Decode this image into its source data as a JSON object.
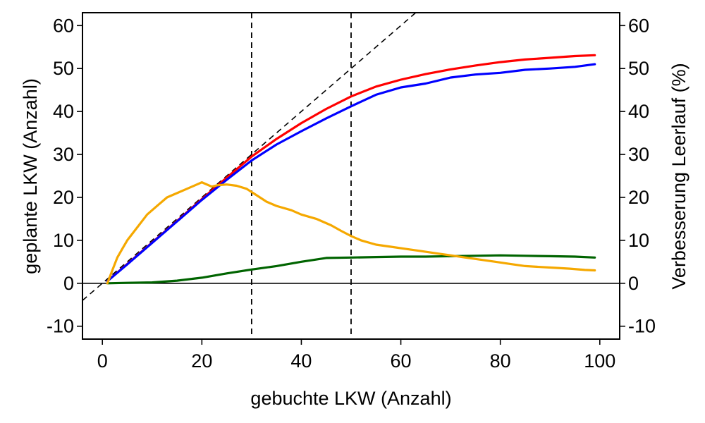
{
  "chart_data": {
    "type": "line",
    "title": "",
    "xlabel": "gebuchte LKW (Anzahl)",
    "ylabel": "geplante LKW (Anzahl)",
    "ylabel_right": "Verbesserung Leerlauf (%)",
    "xlim": [
      -4,
      104
    ],
    "ylim": [
      -13,
      63
    ],
    "ylim_right": [
      -13,
      63
    ],
    "x_ticks": [
      0,
      20,
      40,
      60,
      80,
      100
    ],
    "y_ticks": [
      -10,
      0,
      10,
      20,
      30,
      40,
      50,
      60
    ],
    "y_ticks_right": [
      -10,
      0,
      10,
      20,
      30,
      40,
      50,
      60
    ],
    "grid": false,
    "legend": "none",
    "reference_lines": {
      "identity_diagonal": true,
      "horizontal_zero": 0,
      "vertical_dashed": [
        30,
        50
      ]
    },
    "series": [
      {
        "axis": "left",
        "color": "#ff0000",
        "points": [
          [
            1,
            0.5
          ],
          [
            5,
            4.5
          ],
          [
            10,
            9.5
          ],
          [
            15,
            14.5
          ],
          [
            20,
            19.6
          ],
          [
            25,
            24.6
          ],
          [
            30,
            29.5
          ],
          [
            35,
            33.6
          ],
          [
            40,
            37.3
          ],
          [
            45,
            40.6
          ],
          [
            50,
            43.5
          ],
          [
            55,
            45.8
          ],
          [
            60,
            47.4
          ],
          [
            65,
            48.7
          ],
          [
            70,
            49.8
          ],
          [
            75,
            50.7
          ],
          [
            80,
            51.5
          ],
          [
            85,
            52.1
          ],
          [
            90,
            52.5
          ],
          [
            95,
            52.9
          ],
          [
            99,
            53.1
          ]
        ]
      },
      {
        "axis": "left",
        "color": "#0000ff",
        "points": [
          [
            1,
            0.5
          ],
          [
            5,
            4.4
          ],
          [
            10,
            9.4
          ],
          [
            15,
            14.4
          ],
          [
            20,
            19.4
          ],
          [
            25,
            24.1
          ],
          [
            30,
            28.6
          ],
          [
            35,
            32.3
          ],
          [
            40,
            35.4
          ],
          [
            45,
            38.4
          ],
          [
            50,
            41.2
          ],
          [
            55,
            43.9
          ],
          [
            60,
            45.6
          ],
          [
            65,
            46.5
          ],
          [
            70,
            47.9
          ],
          [
            75,
            48.6
          ],
          [
            80,
            49.0
          ],
          [
            85,
            49.7
          ],
          [
            90,
            50.0
          ],
          [
            95,
            50.4
          ],
          [
            99,
            51.0
          ]
        ]
      },
      {
        "axis": "right",
        "color": "#006400",
        "points": [
          [
            1,
            0.0
          ],
          [
            5,
            0.1
          ],
          [
            10,
            0.2
          ],
          [
            15,
            0.6
          ],
          [
            20,
            1.3
          ],
          [
            25,
            2.3
          ],
          [
            30,
            3.2
          ],
          [
            35,
            4.0
          ],
          [
            40,
            5.0
          ],
          [
            45,
            5.9
          ],
          [
            50,
            6.0
          ],
          [
            55,
            6.1
          ],
          [
            60,
            6.2
          ],
          [
            65,
            6.2
          ],
          [
            70,
            6.3
          ],
          [
            75,
            6.4
          ],
          [
            80,
            6.5
          ],
          [
            85,
            6.4
          ],
          [
            90,
            6.3
          ],
          [
            95,
            6.2
          ],
          [
            99,
            6.0
          ]
        ]
      },
      {
        "axis": "right",
        "color": "#f5a800",
        "points": [
          [
            1,
            0
          ],
          [
            2,
            3
          ],
          [
            3,
            6
          ],
          [
            4,
            8
          ],
          [
            5,
            10
          ],
          [
            7,
            13
          ],
          [
            9,
            16
          ],
          [
            11,
            18
          ],
          [
            13,
            20
          ],
          [
            15,
            21
          ],
          [
            17,
            22
          ],
          [
            19,
            23
          ],
          [
            20,
            23.5
          ],
          [
            22,
            22.5
          ],
          [
            23,
            22.8
          ],
          [
            25,
            23
          ],
          [
            27,
            22.7
          ],
          [
            29,
            22
          ],
          [
            31,
            20.5
          ],
          [
            33,
            19
          ],
          [
            35,
            18
          ],
          [
            38,
            17
          ],
          [
            40,
            16
          ],
          [
            43,
            15
          ],
          [
            46,
            13.5
          ],
          [
            48,
            12.2
          ],
          [
            50,
            11
          ],
          [
            52,
            10
          ],
          [
            55,
            9
          ],
          [
            58,
            8.5
          ],
          [
            61,
            8
          ],
          [
            64,
            7.5
          ],
          [
            67,
            7
          ],
          [
            70,
            6.5
          ],
          [
            73,
            6
          ],
          [
            76,
            5.5
          ],
          [
            79,
            5
          ],
          [
            82,
            4.5
          ],
          [
            85,
            4
          ],
          [
            88,
            3.8
          ],
          [
            91,
            3.6
          ],
          [
            94,
            3.4
          ],
          [
            97,
            3.1
          ],
          [
            99,
            3.0
          ]
        ]
      }
    ]
  }
}
